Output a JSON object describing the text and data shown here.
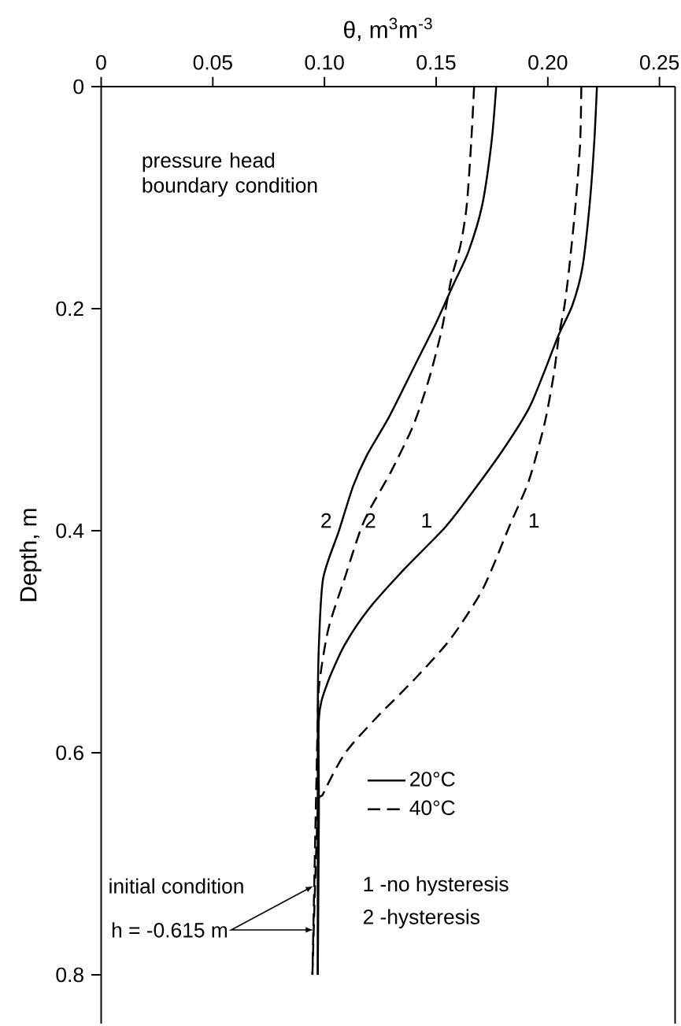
{
  "chart_data": {
    "type": "line",
    "xlabel": "θ, m$^{3}$m$^{-3}$",
    "ylabel": "Depth, m",
    "xlim": [
      0,
      0.257
    ],
    "ylim": [
      0.844,
      0
    ],
    "xticks": [
      0,
      0.05,
      {
        "value": 0.1,
        "label": "0.10"
      },
      0.15,
      {
        "value": 0.2,
        "label": "0.20"
      },
      0.25
    ],
    "yticks": [
      0,
      0.2,
      0.4,
      0.6,
      0.8
    ],
    "legend": "bottom",
    "marker": "none",
    "series": [
      {
        "name": "20°C",
        "color": "#000000",
        "line_style": "solid",
        "x": [
          0.222,
          0.2208,
          0.2187,
          0.2155,
          0.211,
          0.2048,
          0.198,
          0.1915,
          0.18,
          0.166,
          0.154,
          0.136,
          0.12,
          0.109,
          0.101,
          0.0975,
          0.0975,
          0.097
        ],
        "values": [
          0,
          0.05,
          0.107,
          0.163,
          0.197,
          0.224,
          0.259,
          0.29,
          0.327,
          0.366,
          0.397,
          0.434,
          0.47,
          0.503,
          0.539,
          0.569,
          0.652,
          0.8
        ]
      },
      {
        "name": "40°C",
        "color": "#000000",
        "line_style": "dashed",
        "x": [
          0.215,
          0.2145,
          0.2124,
          0.2096,
          0.2075,
          0.205,
          0.2027,
          0.1985,
          0.1915,
          0.183,
          0.171,
          0.1566,
          0.1407,
          0.123,
          0.109,
          0.0994,
          0.097,
          0.0946
        ],
        "values": [
          0,
          0.05,
          0.107,
          0.163,
          0.197,
          0.224,
          0.259,
          0.304,
          0.355,
          0.395,
          0.452,
          0.497,
          0.533,
          0.569,
          0.601,
          0.637,
          0.652,
          0.8
        ]
      },
      {
        "color": "#000000",
        "line_style": "solid",
        "x": [
          0.1769,
          0.1748,
          0.1706,
          0.1644,
          0.158,
          0.1497,
          0.14,
          0.1288,
          0.119,
          0.1128,
          0.1065,
          0.0994,
          0.0975,
          0.097,
          0.097
        ],
        "values": [
          0,
          0.05,
          0.107,
          0.149,
          0.177,
          0.214,
          0.253,
          0.298,
          0.332,
          0.36,
          0.4,
          0.443,
          0.503,
          0.563,
          0.8
        ]
      },
      {
        "color": "#000000",
        "line_style": "dashed",
        "x": [
          0.167,
          0.1657,
          0.1637,
          0.1609,
          0.1567,
          0.1525,
          0.147,
          0.14,
          0.13,
          0.1205,
          0.116,
          0.109,
          0.1018,
          0.098,
          0.097,
          0.0946
        ],
        "values": [
          0,
          0.05,
          0.107,
          0.143,
          0.174,
          0.219,
          0.262,
          0.304,
          0.346,
          0.38,
          0.4,
          0.443,
          0.488,
          0.533,
          0.569,
          0.8
        ]
      }
    ],
    "annotations": [
      "pressure head boundary condition",
      "initial condition",
      {
        "text": "h = -0.615 m",
        "x": 0.095,
        "y": 0.72
      },
      "1 -no hysteresis",
      "2 -hysteresis",
      "2",
      "2",
      "1",
      "1"
    ]
  }
}
